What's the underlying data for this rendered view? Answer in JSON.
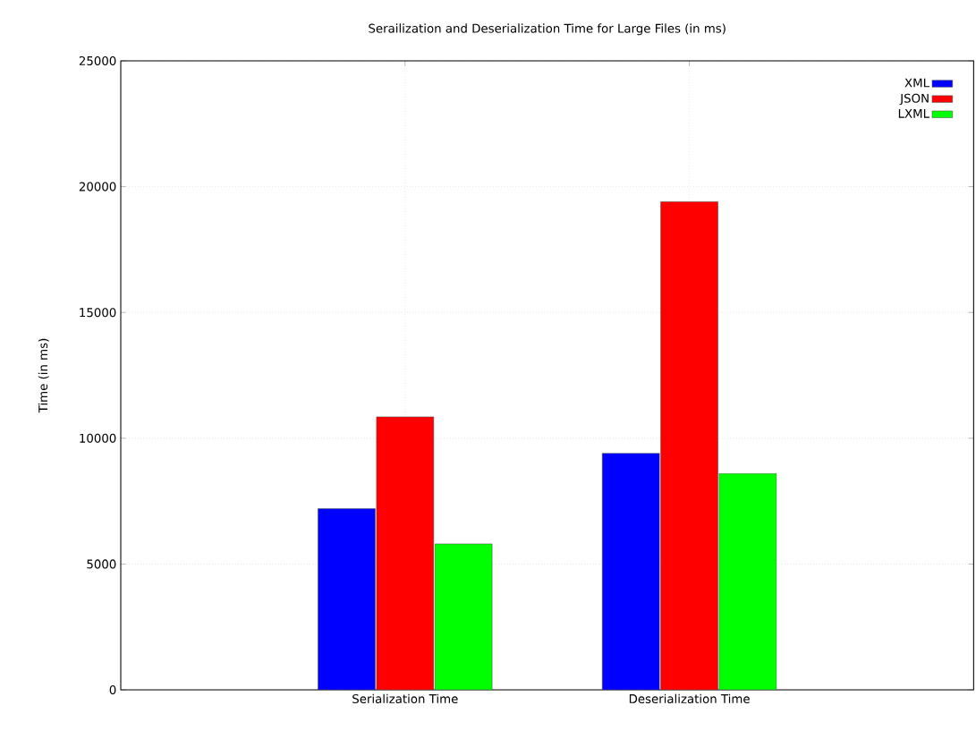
{
  "chart_data": {
    "type": "bar",
    "title": "Serailization and Deserialization Time for Large Files (in ms)",
    "ylabel": "Time (in ms)",
    "categories": [
      "Serialization Time",
      "Deserialization Time"
    ],
    "series": [
      {
        "name": "XML",
        "color": "#0000ff",
        "values": [
          7200,
          9400
        ]
      },
      {
        "name": "JSON",
        "color": "#ff0000",
        "values": [
          10850,
          19400
        ]
      },
      {
        "name": "LXML",
        "color": "#00ff00",
        "values": [
          5800,
          8600
        ]
      }
    ],
    "ylim": [
      0,
      25000
    ],
    "yticks": [
      0,
      5000,
      10000,
      15000,
      20000,
      25000
    ],
    "grid": true,
    "legend": "top right"
  }
}
